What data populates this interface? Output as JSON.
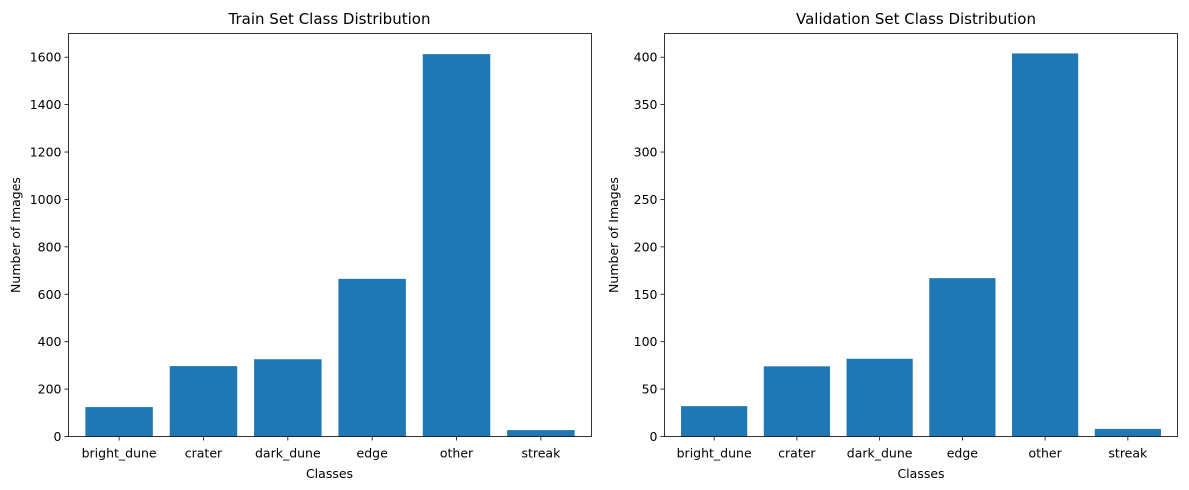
{
  "chart_data": [
    {
      "type": "bar",
      "title": "Train Set Class Distribution",
      "xlabel": "Classes",
      "ylabel": "Number of Images",
      "categories": [
        "bright_dune",
        "crater",
        "dark_dune",
        "edge",
        "other",
        "streak"
      ],
      "values": [
        124,
        297,
        326,
        665,
        1613,
        27
      ],
      "ylim": [
        0,
        1700
      ],
      "yticks": [
        0,
        200,
        400,
        600,
        800,
        1000,
        1200,
        1400,
        1600
      ],
      "color": "#1f77b4"
    },
    {
      "type": "bar",
      "title": "Validation Set Class Distribution",
      "xlabel": "Classes",
      "ylabel": "Number of Images",
      "categories": [
        "bright_dune",
        "crater",
        "dark_dune",
        "edge",
        "other",
        "streak"
      ],
      "values": [
        32,
        74,
        82,
        167,
        404,
        8
      ],
      "ylim": [
        0,
        425
      ],
      "yticks": [
        0,
        50,
        100,
        150,
        200,
        250,
        300,
        350,
        400
      ],
      "color": "#1f77b4"
    }
  ]
}
